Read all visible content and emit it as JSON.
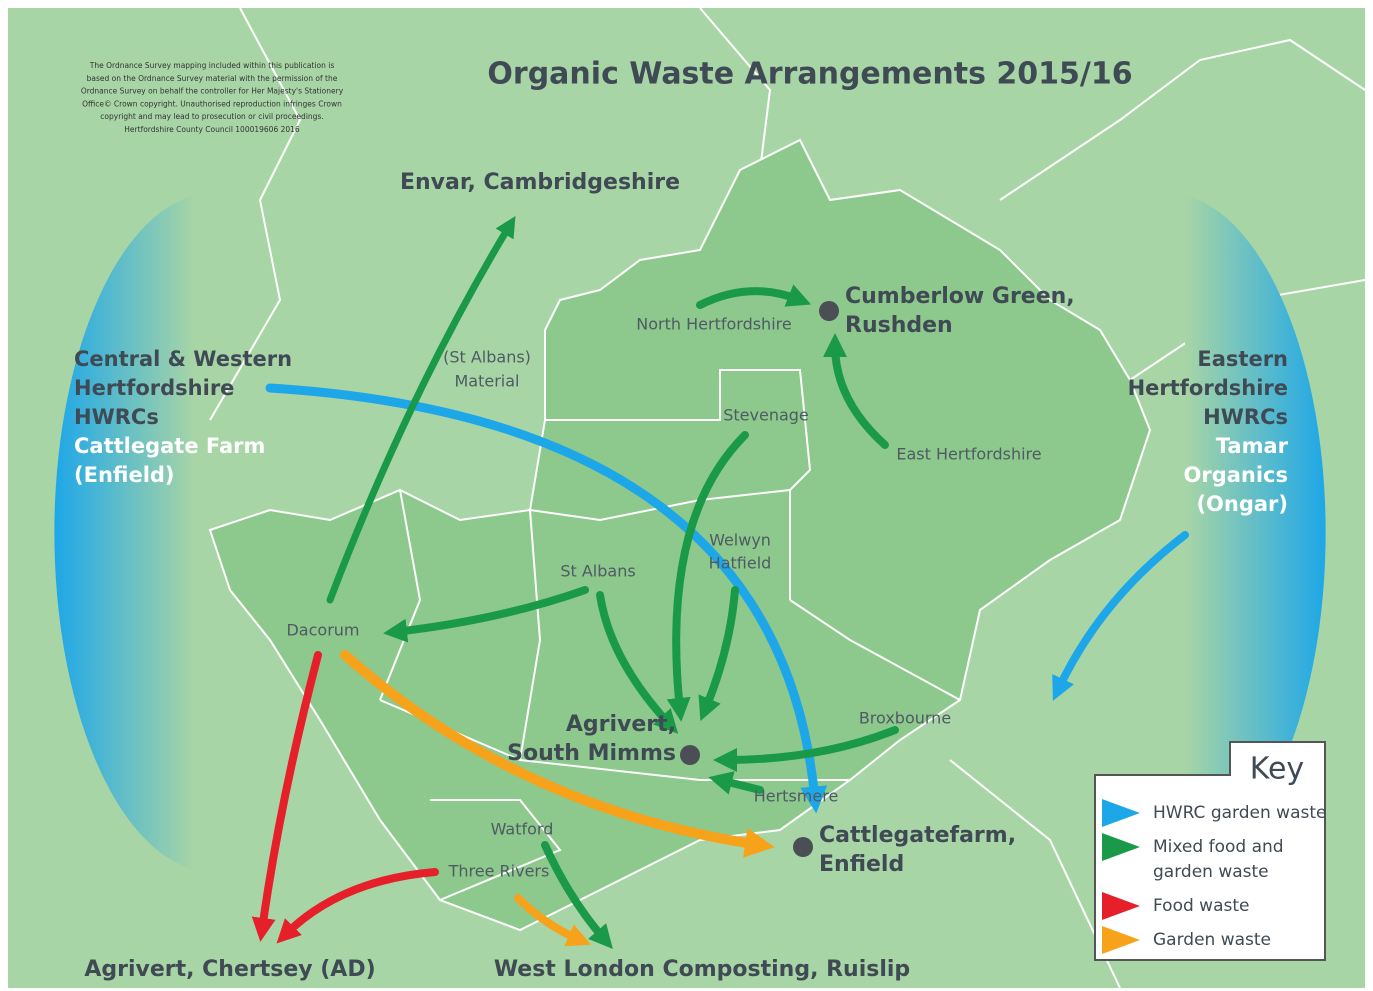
{
  "title": "Organic Waste Arrangements 2015/16",
  "copyright": [
    "The Ordnance Survey mapping included within this publication is",
    "based on the Ordnance Survey material with the permission of the",
    "Ordnance Survey on behalf the controller for Her Majesty's Stationery",
    "Office© Crown copyright. Unauthorised reproduction infringes Crown",
    "copyright and may lead to prosecution or civil proceedings.",
    "Hertfordshire County Council 100019606 2016"
  ],
  "left_panel": {
    "heading": [
      "Central & Western",
      "Hertfordshire",
      "HWRCs"
    ],
    "site": [
      "Cattlegate Farm",
      "(Enfield)"
    ]
  },
  "right_panel": {
    "heading": [
      "Eastern",
      "Hertfordshire",
      "HWRCs"
    ],
    "site": [
      "Tamar",
      "Organics",
      "(Ongar)"
    ]
  },
  "destinations": {
    "envar": "Envar, Cambridgeshire",
    "cumberlow": [
      "Cumberlow Green,",
      "Rushden"
    ],
    "south_mimms": [
      "Agrivert,",
      "South Mimms"
    ],
    "cattlegate": [
      "Cattlegatefarm,",
      "Enfield"
    ],
    "chertsey": "Agrivert, Chertsey (AD)",
    "ruislip": "West London Composting, Ruislip"
  },
  "districts": {
    "north_herts": "North Hertfordshire",
    "st_albans_material": [
      "(St Albans)",
      "Material"
    ],
    "stevenage": "Stevenage",
    "east_herts": "East Hertfordshire",
    "welwyn_hatfield": [
      "Welwyn",
      "Hatfield"
    ],
    "st_albans": "St Albans",
    "dacorum": "Dacorum",
    "broxbourne": "Broxbourne",
    "hertsmere": "Hertsmere",
    "watford": "Watford",
    "three_rivers": "Three Rivers"
  },
  "key": {
    "title": "Key",
    "items": [
      {
        "label": [
          "HWRC garden waste"
        ],
        "color": "#1ea7e8"
      },
      {
        "label": [
          "Mixed food and",
          "garden waste"
        ],
        "color": "#1a9a48"
      },
      {
        "label": [
          "Food waste"
        ],
        "color": "#e5202a"
      },
      {
        "label": [
          "Garden waste"
        ],
        "color": "#f7a21b"
      }
    ]
  }
}
